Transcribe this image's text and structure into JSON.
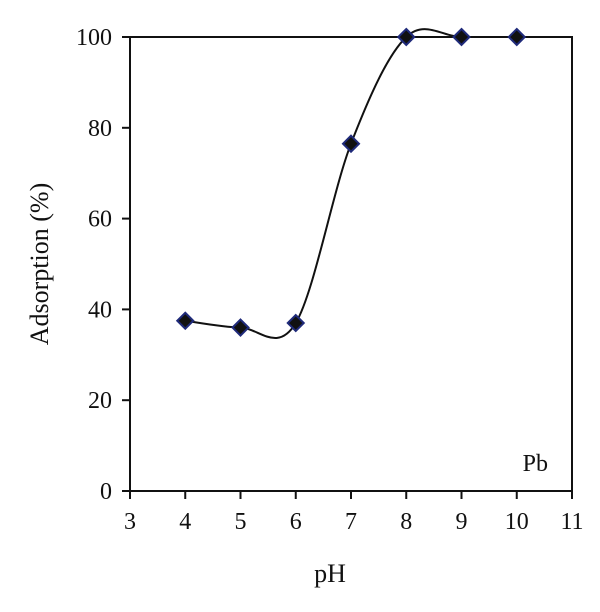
{
  "chart_data": {
    "type": "scatter",
    "title": "",
    "xlabel": "pH",
    "ylabel": "Adsorption (%)",
    "xlim": [
      3,
      11
    ],
    "ylim": [
      0,
      100
    ],
    "x_ticks": [
      "3",
      "4",
      "5",
      "6",
      "7",
      "8",
      "9",
      "10",
      "11"
    ],
    "y_ticks": [
      "0",
      "20",
      "40",
      "60",
      "80",
      "100"
    ],
    "grid": false,
    "legend": "none",
    "annotation": "Pb",
    "marker": "diamond",
    "smoothed_line": true,
    "marker_color": "#111111",
    "marker_edge_color": "#1f2a7a",
    "line_color": "#111111",
    "series": [
      {
        "x": [
          4,
          5,
          6,
          7,
          8,
          9,
          10
        ],
        "y": [
          37.5,
          36,
          37,
          76.5,
          100,
          100,
          100
        ]
      }
    ]
  }
}
